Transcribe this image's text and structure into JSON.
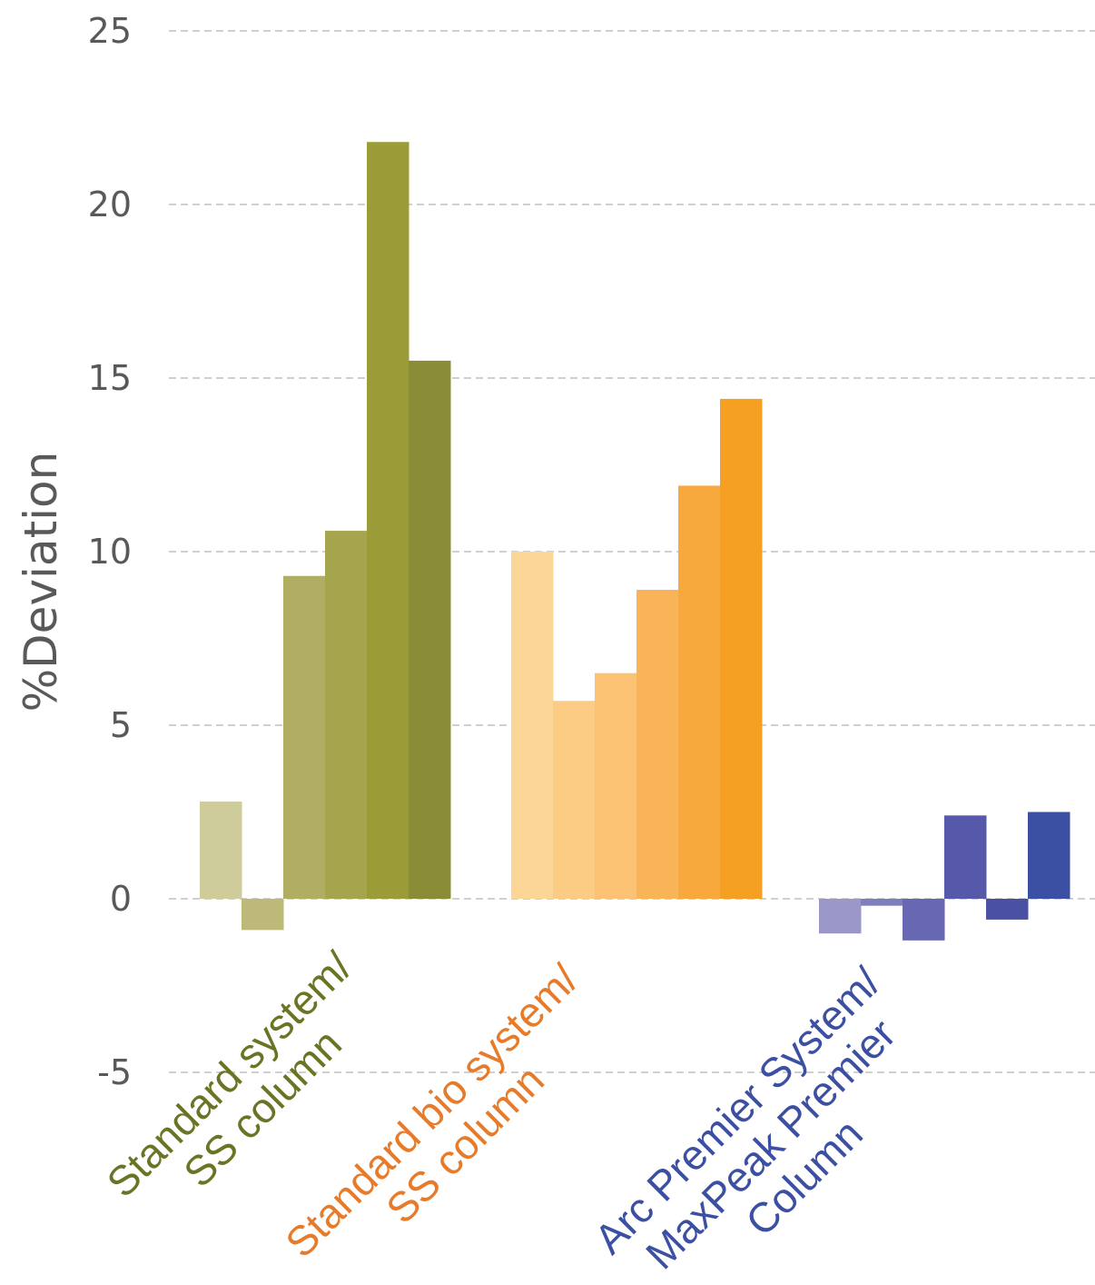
{
  "chart_data": {
    "type": "bar",
    "ylabel": "%Deviation",
    "ylim": [
      -5,
      25
    ],
    "yticks": [
      "25",
      "20",
      "15",
      "10",
      "5",
      "0",
      "-5"
    ],
    "grid": true,
    "groups": [
      {
        "label_lines": [
          "Standard system/",
          "SS column"
        ],
        "label_color": "#6b7324",
        "values": [
          2.8,
          -0.9,
          9.3,
          10.6,
          21.8,
          15.5
        ],
        "colors": [
          "#cfcc9c",
          "#bdb979",
          "#b0ae63",
          "#a4a54d",
          "#9b9c38",
          "#8b8c36"
        ]
      },
      {
        "label_lines": [
          "Standard bio system/",
          "SS column"
        ],
        "label_color": "#e87b2a",
        "values": [
          10.0,
          5.7,
          6.5,
          8.9,
          11.9,
          14.4
        ],
        "colors": [
          "#fcd697",
          "#fccc85",
          "#fbc373",
          "#f9b458",
          "#f8a93e",
          "#f6a023"
        ]
      },
      {
        "label_lines": [
          "Arc Premier System/",
          "MaxPeak Premier",
          "Column"
        ],
        "label_color": "#3b4fa3",
        "values": [
          -1.0,
          -0.2,
          -1.2,
          2.4,
          -0.6,
          2.5
        ],
        "colors": [
          "#9b98c9",
          "#7f7ebd",
          "#6767b2",
          "#5659a9",
          "#4a50a4",
          "#3b4fa3"
        ]
      }
    ]
  }
}
